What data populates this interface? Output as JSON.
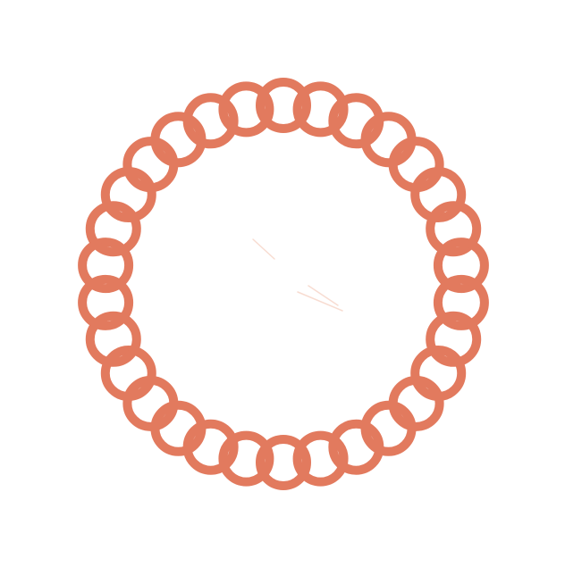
{
  "graphic": {
    "subject": "circular-chain-ring-icon",
    "link_count": 30,
    "colors": {
      "background": "#ffffff",
      "link_stroke": "#e27a5e",
      "faint_marks": "#f6d3c6"
    }
  }
}
